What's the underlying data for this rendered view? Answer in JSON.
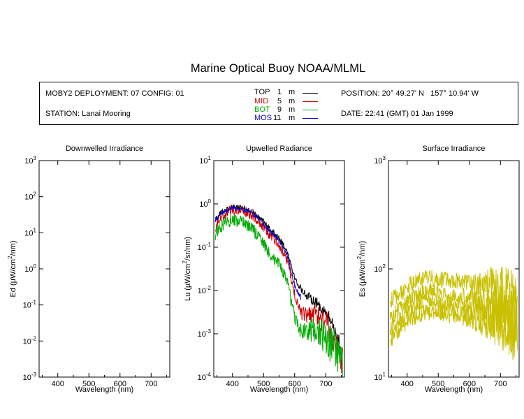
{
  "title": "Marine Optical Buoy NOAA/MLML",
  "info": {
    "deployment": "MOBY2 DEPLOYMENT: 07 CONFIG: 01",
    "station": "STATION: Lanai Mooring",
    "position": "POSITION: 20° 49.27' N   157° 10.94' W",
    "date": "DATE: 22:41 (GMT) 01 Jan 1999"
  },
  "legend": [
    {
      "name": "TOP",
      "depth": "1",
      "unit": "m",
      "color": "#000000"
    },
    {
      "name": "MID",
      "depth": "5",
      "unit": "m",
      "color": "#cc0000"
    },
    {
      "name": "BOT",
      "depth": "9",
      "unit": "m",
      "color": "#00aa00"
    },
    {
      "name": "MOS",
      "depth": "11",
      "unit": "m",
      "color": "#0000cc"
    }
  ],
  "chart_data": [
    {
      "type": "line",
      "title": "Downwelled Irradiance",
      "xlabel": "Wavelength (nm)",
      "ylabel_base": "Ed  (µW/cm",
      "ylabel_sup": "2",
      "ylabel_end": "/nm)",
      "xlim": [
        340,
        760
      ],
      "ylim_log10": [
        -3,
        3
      ],
      "x_ticks": [
        "400",
        "500",
        "600",
        "700"
      ],
      "y_ticks": [
        {
          "base": "10",
          "exp": "3"
        },
        {
          "base": "10",
          "exp": "2"
        },
        {
          "base": "10",
          "exp": "1"
        },
        {
          "base": "10",
          "exp": "0"
        },
        {
          "base": "10",
          "exp": "-1"
        },
        {
          "base": "10",
          "exp": "-2"
        },
        {
          "base": "10",
          "exp": "-3"
        }
      ],
      "series": []
    },
    {
      "type": "line",
      "title": "Upwelled Radiance",
      "xlabel": "Wavelength (nm)",
      "ylabel_base": "Lu  (µW/cm",
      "ylabel_sup": "2",
      "ylabel_end": "/sr/nm)",
      "xlim": [
        340,
        760
      ],
      "ylim_log10": [
        -4,
        1
      ],
      "x_ticks": [
        "400",
        "500",
        "600",
        "700"
      ],
      "y_ticks": [
        {
          "base": "10",
          "exp": "1"
        },
        {
          "base": "10",
          "exp": "0"
        },
        {
          "base": "10",
          "exp": "-1"
        },
        {
          "base": "10",
          "exp": "-2"
        },
        {
          "base": "10",
          "exp": "-3"
        },
        {
          "base": "10",
          "exp": "-4"
        }
      ],
      "series": [
        {
          "color": "#000000",
          "noise": 0.06,
          "x": [
            345,
            360,
            380,
            400,
            420,
            440,
            460,
            480,
            500,
            520,
            540,
            560,
            580,
            590,
            600,
            610,
            620,
            640,
            660,
            680,
            700,
            720,
            740,
            755
          ],
          "y": [
            0.45,
            0.6,
            0.75,
            0.88,
            0.85,
            0.78,
            0.68,
            0.55,
            0.4,
            0.27,
            0.2,
            0.13,
            0.07,
            0.035,
            0.02,
            0.014,
            0.011,
            0.0075,
            0.006,
            0.0045,
            0.003,
            0.0018,
            0.0007,
            0.0003
          ]
        },
        {
          "color": "#cc0000",
          "noise": 0.12,
          "x": [
            345,
            360,
            380,
            400,
            420,
            440,
            460,
            480,
            500,
            520,
            540,
            560,
            580,
            590,
            600,
            610,
            620,
            640,
            660,
            680,
            700,
            720,
            740,
            755
          ],
          "y": [
            0.3,
            0.5,
            0.6,
            0.75,
            0.72,
            0.65,
            0.55,
            0.43,
            0.3,
            0.19,
            0.14,
            0.085,
            0.04,
            0.017,
            0.008,
            0.0045,
            0.003,
            0.0025,
            0.003,
            0.0025,
            0.0018,
            0.001,
            0.0004,
            0.0002
          ]
        },
        {
          "color": "#00aa00",
          "noise": 0.15,
          "x": [
            345,
            360,
            380,
            400,
            420,
            440,
            460,
            480,
            500,
            520,
            540,
            560,
            580,
            590,
            600,
            610,
            620,
            640,
            660,
            680,
            700,
            720,
            740,
            755
          ],
          "y": [
            0.2,
            0.3,
            0.37,
            0.43,
            0.4,
            0.35,
            0.28,
            0.2,
            0.12,
            0.07,
            0.05,
            0.03,
            0.012,
            0.005,
            0.0025,
            0.0015,
            0.0012,
            0.0011,
            0.0012,
            0.0011,
            0.0008,
            0.0005,
            0.0003,
            0.00015
          ]
        },
        {
          "color": "#0000cc",
          "noise": 0.05,
          "x": [
            345,
            360,
            380,
            400,
            420,
            440,
            460,
            480,
            500,
            520,
            540,
            560,
            580,
            590,
            600,
            610,
            620
          ],
          "y": [
            0.42,
            0.56,
            0.7,
            0.82,
            0.8,
            0.73,
            0.63,
            0.5,
            0.35,
            0.23,
            0.17,
            0.11,
            0.055,
            0.025,
            0.013,
            0.009,
            0.007
          ]
        }
      ]
    },
    {
      "type": "line",
      "title": "Surface Irradiance",
      "xlabel": "Wavelength (nm)",
      "ylabel_base": "Es  (µW/cm",
      "ylabel_sup": "2",
      "ylabel_end": "/nm)",
      "xlim": [
        340,
        760
      ],
      "ylim_log10": [
        1,
        3
      ],
      "x_ticks": [
        "400",
        "500",
        "600",
        "700"
      ],
      "y_ticks": [
        {
          "base": "10",
          "exp": "3"
        },
        {
          "base": "10",
          "exp": "2"
        },
        {
          "base": "10",
          "exp": "1"
        }
      ],
      "series": [
        {
          "color": "#c8c000",
          "noise": 0.08,
          "x": [
            345,
            380,
            420,
            460,
            500,
            550,
            600,
            650,
            700,
            730,
            755
          ],
          "y": [
            50,
            60,
            75,
            82,
            80,
            78,
            75,
            72,
            65,
            58,
            50
          ]
        },
        {
          "color": "#c8c000",
          "noise": 0.08,
          "x": [
            345,
            380,
            420,
            460,
            500,
            550,
            600,
            650,
            700,
            730,
            755
          ],
          "y": [
            35,
            44,
            55,
            62,
            60,
            58,
            55,
            52,
            46,
            42,
            38
          ]
        },
        {
          "color": "#c8c000",
          "noise": 0.08,
          "x": [
            345,
            380,
            420,
            460,
            500,
            550,
            600,
            650,
            700,
            730,
            755
          ],
          "y": [
            28,
            35,
            44,
            50,
            48,
            46,
            43,
            40,
            36,
            33,
            30
          ]
        },
        {
          "color": "#c8c000",
          "noise": 0.08,
          "x": [
            345,
            380,
            420,
            460,
            500,
            550,
            600,
            650,
            700,
            730,
            755
          ],
          "y": [
            22,
            28,
            36,
            40,
            39,
            37,
            35,
            32,
            28,
            25,
            22
          ]
        }
      ]
    }
  ]
}
